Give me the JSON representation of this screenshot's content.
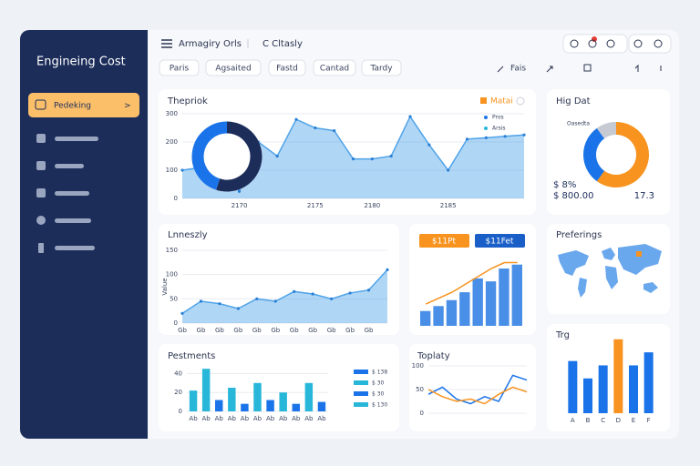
{
  "sidebar": {
    "title": "Engineing Cost",
    "active": "Pedeking",
    "chevron": ">"
  },
  "topbar": {
    "menu": "Armagiry Orls",
    "filter": "C Cltasly"
  },
  "chips": [
    "Paris",
    "Agsaited",
    "Fastd",
    "Cantad",
    "Tardy"
  ],
  "action": "Fais",
  "charts": [
    {
      "type": "area",
      "title": "Thepriok",
      "legend": "Matai",
      "legend_items": [
        "Pros",
        "Arsis"
      ],
      "color": "#4fa3e8",
      "values": [
        100,
        110,
        200,
        25,
        200,
        150,
        280,
        250,
        240,
        140,
        140,
        150,
        290,
        190,
        100,
        210,
        215,
        220,
        225
      ],
      "ylim": [
        0,
        300
      ],
      "yticks": [
        0,
        100,
        200,
        300
      ],
      "categories": [
        null,
        null,
        null,
        "2170",
        null,
        null,
        null,
        "2175",
        null,
        null,
        "2180",
        null,
        null,
        null,
        "2185",
        null,
        null,
        null,
        null
      ]
    },
    {
      "type": "donut",
      "values": [
        55,
        45
      ],
      "colors": [
        "#1c2d5a",
        "#1a73e8"
      ]
    },
    {
      "type": "donut",
      "title": "Hig Dat",
      "label": "Oasedta",
      "stat1": "$ 8%",
      "stat2": "$ 800.00",
      "stat3": "17.3",
      "values": [
        60,
        30,
        10
      ],
      "colors": [
        "#f7931e",
        "#1a73e8",
        "#c5cad3"
      ]
    },
    {
      "type": "area",
      "title": "Lnneszly",
      "axis_label": "Value",
      "color": "#4fa3e8",
      "values": [
        20,
        45,
        40,
        30,
        50,
        45,
        65,
        60,
        50,
        62,
        68,
        110
      ],
      "ylim": [
        0,
        150
      ],
      "yticks": [
        0,
        50,
        100,
        150
      ],
      "categories": [
        "Gb",
        "Gb",
        "Gb",
        "Gb",
        "Gb",
        "Gb",
        "Gb",
        "Gb",
        "Gb",
        "Gb",
        "Gb",
        null
      ]
    },
    {
      "type": "barline",
      "chips": [
        "$11Pt",
        "$11Fet"
      ],
      "chip_colors": [
        "#f7931e",
        "#1a5fc8"
      ],
      "values": [
        15,
        20,
        26,
        34,
        48,
        45,
        58,
        62
      ],
      "color": "#4a8fe7",
      "line": [
        22,
        28,
        34,
        42,
        50,
        58,
        64,
        64
      ],
      "line_color": "#f7931e",
      "ylim": [
        0,
        70
      ]
    },
    {
      "type": "bar",
      "title": "Trg",
      "values": [
        60,
        40,
        55,
        85,
        55,
        70
      ],
      "colors": [
        "#1a73e8",
        "#1a73e8",
        "#1a73e8",
        "#f7931e",
        "#1a73e8",
        "#1a73e8"
      ],
      "ylim": [
        0,
        90
      ],
      "categories": [
        "A",
        "B",
        "C",
        "D",
        "E",
        "F"
      ]
    },
    {
      "type": "bar",
      "title": "Pestments",
      "values": [
        22,
        45,
        12,
        25,
        8,
        30,
        12,
        20,
        8,
        30,
        10
      ],
      "colors": [
        "#28b7d9",
        "#28b7d9",
        "#1a73e8",
        "#28b7d9",
        "#1a73e8",
        "#28b7d9",
        "#1a73e8",
        "#28b7d9",
        "#1a73e8",
        "#28b7d9",
        "#1a73e8"
      ],
      "ylim": [
        0,
        50
      ],
      "yticks": [
        0,
        20,
        40
      ],
      "legend_items": [
        "$ 138",
        "$ 30",
        "$ 30",
        "$ 130"
      ],
      "categories": [
        "Ab",
        "Ab",
        "Ab",
        "Ab",
        "Ab",
        "Ab",
        "Ab",
        "Ab",
        "Ab",
        "Ab",
        "Ab"
      ]
    },
    {
      "type": "line",
      "title": "Toplaty",
      "series": [
        {
          "color": "#1a73e8",
          "values": [
            40,
            55,
            30,
            20,
            35,
            25,
            80,
            70
          ]
        },
        {
          "color": "#f7931e",
          "values": [
            50,
            35,
            25,
            30,
            20,
            40,
            55,
            45
          ]
        }
      ],
      "ylim": [
        0,
        100
      ],
      "yticks": [
        0,
        50,
        100
      ]
    },
    {
      "type": "map",
      "title": "Preferings"
    }
  ]
}
